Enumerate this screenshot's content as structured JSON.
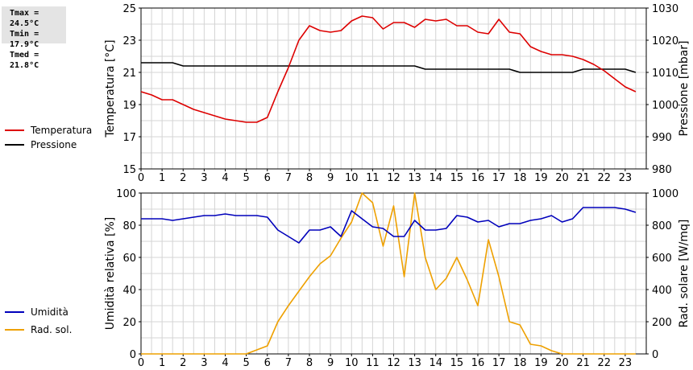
{
  "stats": {
    "tmax": "Tmax = 24.5°C",
    "tmin": "Tmin = 17.9°C",
    "tmed": "Tmed = 21.8°C"
  },
  "chart_data": [
    {
      "type": "line",
      "x_ticks": [
        "0",
        "1",
        "2",
        "3",
        "4",
        "5",
        "6",
        "7",
        "8",
        "9",
        "10",
        "11",
        "12",
        "13",
        "14",
        "15",
        "16",
        "17",
        "18",
        "19",
        "20",
        "21",
        "22",
        "23"
      ],
      "ylabel_left": "Temperatura [°C]",
      "ylabel_right": "Pressione [mbar]",
      "ylim_left": [
        15,
        25
      ],
      "ylim_right": [
        980,
        1030
      ],
      "yticks_left": [
        15,
        17,
        19,
        21,
        23,
        25
      ],
      "yticks_right": [
        980,
        990,
        1000,
        1010,
        1020,
        1030
      ],
      "grid": true,
      "legend_placement": "left",
      "series": [
        {
          "name": "Temperatura",
          "axis": "left",
          "color": "#dd0000",
          "x": [
            0,
            0.5,
            1,
            1.5,
            2,
            2.5,
            3,
            3.5,
            4,
            4.5,
            5,
            5.5,
            6,
            6.5,
            7,
            7.5,
            8,
            8.5,
            9,
            9.5,
            10,
            10.5,
            11,
            11.5,
            12,
            12.5,
            13,
            13.5,
            14,
            14.5,
            15,
            15.5,
            16,
            16.5,
            17,
            17.5,
            18,
            18.5,
            19,
            19.5,
            20,
            20.5,
            21,
            21.5,
            22,
            22.5,
            23,
            23.5
          ],
          "values": [
            19.8,
            19.6,
            19.3,
            19.3,
            19.0,
            18.7,
            18.5,
            18.3,
            18.1,
            18.0,
            17.9,
            17.9,
            18.2,
            19.8,
            21.3,
            23.0,
            23.9,
            23.6,
            23.5,
            23.6,
            24.2,
            24.5,
            24.4,
            23.7,
            24.1,
            24.1,
            23.8,
            24.3,
            24.2,
            24.3,
            23.9,
            23.9,
            23.5,
            23.4,
            24.3,
            23.5,
            23.4,
            22.6,
            22.3,
            22.1,
            22.1,
            22.0,
            21.8,
            21.5,
            21.1,
            20.6,
            20.1,
            19.8
          ]
        },
        {
          "name": "Pressione",
          "axis": "right",
          "color": "#000000",
          "x": [
            0,
            0.5,
            1,
            1.5,
            2,
            2.5,
            3,
            3.5,
            4,
            4.5,
            5,
            5.5,
            6,
            6.5,
            7,
            7.5,
            8,
            8.5,
            9,
            9.5,
            10,
            10.5,
            11,
            11.5,
            12,
            12.5,
            13,
            13.5,
            14,
            14.5,
            15,
            15.5,
            16,
            16.5,
            17,
            17.5,
            18,
            18.5,
            19,
            19.5,
            20,
            20.5,
            21,
            21.5,
            22,
            22.5,
            23,
            23.5
          ],
          "values": [
            1013,
            1013,
            1013,
            1013,
            1012,
            1012,
            1012,
            1012,
            1012,
            1012,
            1012,
            1012,
            1012,
            1012,
            1012,
            1012,
            1012,
            1012,
            1012,
            1012,
            1012,
            1012,
            1012,
            1012,
            1012,
            1012,
            1012,
            1011,
            1011,
            1011,
            1011,
            1011,
            1011,
            1011,
            1011,
            1011,
            1010,
            1010,
            1010,
            1010,
            1010,
            1010,
            1011,
            1011,
            1011,
            1011,
            1011,
            1010
          ]
        }
      ]
    },
    {
      "type": "line",
      "x_ticks": [
        "0",
        "1",
        "2",
        "3",
        "4",
        "5",
        "6",
        "7",
        "8",
        "9",
        "10",
        "11",
        "12",
        "13",
        "14",
        "15",
        "16",
        "17",
        "18",
        "19",
        "20",
        "21",
        "22",
        "23"
      ],
      "ylabel_left": "Umidità relativa [%]",
      "ylabel_right": "Rad. solare [W/mq]",
      "ylim_left": [
        0,
        100
      ],
      "ylim_right": [
        0,
        1000
      ],
      "yticks_left": [
        0,
        20,
        40,
        60,
        80,
        100
      ],
      "yticks_right": [
        0,
        200,
        400,
        600,
        800,
        1000
      ],
      "grid": true,
      "legend_placement": "left",
      "series": [
        {
          "name": "Umidità",
          "axis": "left",
          "color": "#0000bb",
          "x": [
            0,
            0.5,
            1,
            1.5,
            2,
            2.5,
            3,
            3.5,
            4,
            4.5,
            5,
            5.5,
            6,
            6.5,
            7,
            7.5,
            8,
            8.5,
            9,
            9.5,
            10,
            10.5,
            11,
            11.5,
            12,
            12.5,
            13,
            13.5,
            14,
            14.5,
            15,
            15.5,
            16,
            16.5,
            17,
            17.5,
            18,
            18.5,
            19,
            19.5,
            20,
            20.5,
            21,
            21.5,
            22,
            22.5,
            23,
            23.5
          ],
          "values": [
            84,
            84,
            84,
            83,
            84,
            85,
            86,
            86,
            87,
            86,
            86,
            86,
            85,
            77,
            73,
            69,
            77,
            77,
            79,
            73,
            89,
            84,
            79,
            78,
            73,
            73,
            83,
            77,
            77,
            78,
            86,
            85,
            82,
            83,
            79,
            81,
            81,
            83,
            84,
            86,
            82,
            84,
            91,
            91,
            91,
            91,
            90,
            88
          ]
        },
        {
          "name": "Rad. sol.",
          "axis": "right",
          "color": "#eea000",
          "x": [
            0,
            0.5,
            1,
            1.5,
            2,
            2.5,
            3,
            3.5,
            4,
            4.5,
            5,
            5.5,
            6,
            6.5,
            7,
            7.5,
            8,
            8.5,
            9,
            9.5,
            10,
            10.5,
            11,
            11.5,
            12,
            12.5,
            13,
            13.5,
            14,
            14.5,
            15,
            15.5,
            16,
            16.5,
            17,
            17.5,
            18,
            18.5,
            19,
            19.5,
            20,
            20.5,
            21,
            21.5,
            22,
            22.5,
            23,
            23.5
          ],
          "values": [
            0,
            0,
            0,
            0,
            0,
            0,
            0,
            0,
            0,
            0,
            0,
            25,
            50,
            200,
            300,
            390,
            480,
            560,
            610,
            720,
            820,
            1000,
            940,
            670,
            920,
            480,
            1000,
            600,
            400,
            470,
            600,
            460,
            300,
            710,
            480,
            200,
            180,
            60,
            50,
            20,
            0,
            0,
            0,
            0,
            0,
            0,
            0,
            0
          ]
        }
      ]
    }
  ]
}
